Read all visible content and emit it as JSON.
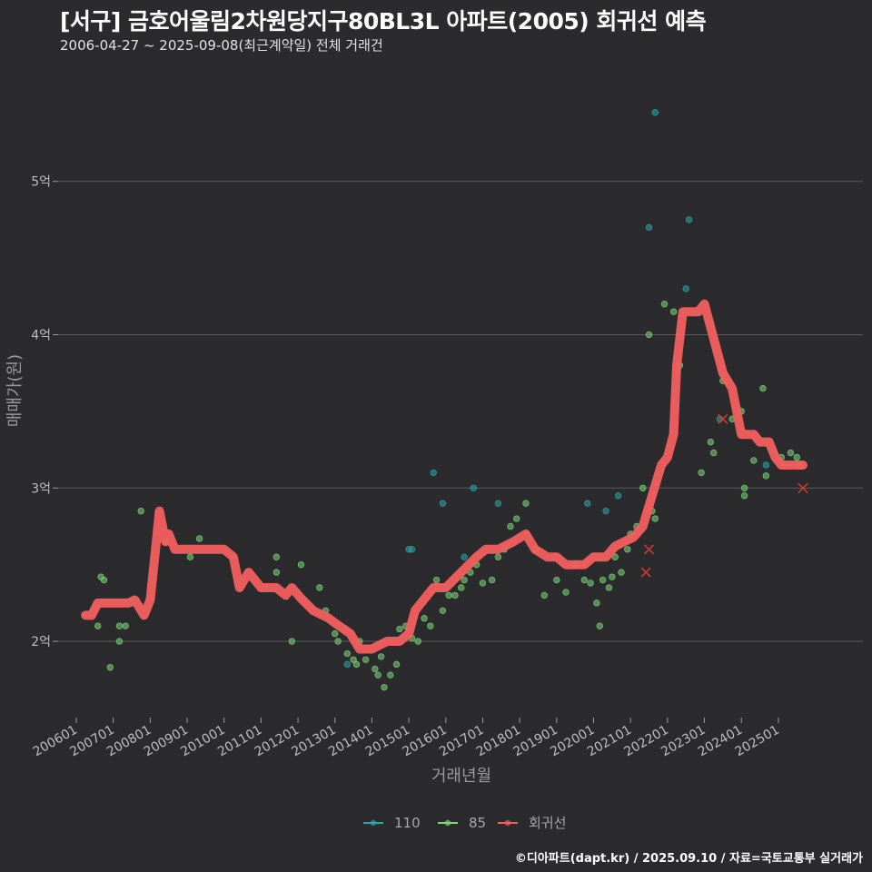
{
  "header": {
    "title": "[서구] 금호어울림2차원당지구80BL3L 아파트(2005) 회귀선 예측",
    "subtitle": "2006-04-27 ~ 2025-09-08(최근계약일) 전체 거래건"
  },
  "footer": {
    "credit": "©디아파트(dapt.kr) / 2025.09.10 / 자료=국토교통부 실거래가"
  },
  "colors": {
    "background": "#2b2b2d",
    "grid": "#5a5a5a",
    "series_110": "#2aa6a8",
    "series_85": "#7ed67a",
    "regression": "#f25f5f"
  },
  "chart_data": {
    "type": "scatter",
    "title": "[서구] 금호어울림2차원당지구80BL3L 아파트(2005) 회귀선 예측",
    "subtitle": "2006-04-27 ~ 2025-09-08(최근계약일) 전체 거래건",
    "xlabel": "거래년월",
    "ylabel": "매매가(원)",
    "x_type": "date",
    "xlim": [
      "2006-01",
      "2025-09"
    ],
    "ylim": [
      1.55,
      5.65
    ],
    "x_ticks": [
      "2006-01",
      "2007-01",
      "2008-01",
      "2009-01",
      "2010-01",
      "2011-01",
      "2012-01",
      "2013-01",
      "2014-01",
      "2015-01",
      "2016-01",
      "2017-01",
      "2018-01",
      "2019-01",
      "2020-01",
      "2021-01",
      "2022-01",
      "2023-01",
      "2024-01",
      "2025-01"
    ],
    "x_tick_labels": [
      "200601",
      "200701",
      "200801",
      "200901",
      "201001",
      "201101",
      "201201",
      "201301",
      "201401",
      "201501",
      "201601",
      "201701",
      "201801",
      "201901",
      "202001",
      "202101",
      "202201",
      "202301",
      "202401",
      "202501"
    ],
    "y_ticks": [
      2,
      3,
      4,
      5
    ],
    "y_tick_labels": [
      "2억",
      "3억",
      "4억",
      "5억"
    ],
    "grid": "horizontal",
    "legend_position": "bottom",
    "series": [
      {
        "name": "110",
        "kind": "points",
        "points": [
          [
            "2013-05",
            1.85
          ],
          [
            "2015-01",
            2.6
          ],
          [
            "2015-02",
            2.6
          ],
          [
            "2015-09",
            3.1
          ],
          [
            "2015-12",
            2.9
          ],
          [
            "2016-07",
            2.55
          ],
          [
            "2016-10",
            3.0
          ],
          [
            "2017-06",
            2.9
          ],
          [
            "2019-11",
            2.9
          ],
          [
            "2020-05",
            2.85
          ],
          [
            "2020-09",
            2.95
          ],
          [
            "2021-07",
            4.7
          ],
          [
            "2021-09",
            5.45
          ],
          [
            "2022-07",
            4.3
          ],
          [
            "2022-08",
            4.75
          ],
          [
            "2023-06",
            3.45
          ],
          [
            "2024-09",
            3.15
          ],
          [
            "2025-03",
            3.15
          ]
        ]
      },
      {
        "name": "85",
        "kind": "points",
        "points": [
          [
            "2006-08",
            2.1
          ],
          [
            "2006-09",
            2.42
          ],
          [
            "2006-10",
            2.4
          ],
          [
            "2006-12",
            1.83
          ],
          [
            "2007-03",
            2.1
          ],
          [
            "2007-03",
            2.0
          ],
          [
            "2007-05",
            2.1
          ],
          [
            "2007-10",
            2.85
          ],
          [
            "2008-06",
            2.65
          ],
          [
            "2009-02",
            2.55
          ],
          [
            "2009-05",
            2.67
          ],
          [
            "2010-04",
            2.55
          ],
          [
            "2011-06",
            2.45
          ],
          [
            "2011-06",
            2.55
          ],
          [
            "2011-11",
            2.0
          ],
          [
            "2012-02",
            2.5
          ],
          [
            "2012-08",
            2.35
          ],
          [
            "2012-10",
            2.2
          ],
          [
            "2013-01",
            2.05
          ],
          [
            "2013-02",
            2.0
          ],
          [
            "2013-05",
            1.92
          ],
          [
            "2013-07",
            1.88
          ],
          [
            "2013-08",
            1.85
          ],
          [
            "2013-09",
            2.0
          ],
          [
            "2013-11",
            1.88
          ],
          [
            "2014-02",
            1.82
          ],
          [
            "2014-03",
            1.78
          ],
          [
            "2014-04",
            1.9
          ],
          [
            "2014-05",
            1.7
          ],
          [
            "2014-07",
            1.78
          ],
          [
            "2014-09",
            1.85
          ],
          [
            "2014-10",
            2.08
          ],
          [
            "2014-12",
            2.1
          ],
          [
            "2015-02",
            2.02
          ],
          [
            "2015-04",
            2.0
          ],
          [
            "2015-06",
            2.15
          ],
          [
            "2015-08",
            2.1
          ],
          [
            "2015-10",
            2.4
          ],
          [
            "2015-12",
            2.2
          ],
          [
            "2016-02",
            2.3
          ],
          [
            "2016-04",
            2.3
          ],
          [
            "2016-06",
            2.35
          ],
          [
            "2016-07",
            2.4
          ],
          [
            "2016-09",
            2.45
          ],
          [
            "2016-11",
            2.5
          ],
          [
            "2017-01",
            2.38
          ],
          [
            "2017-04",
            2.4
          ],
          [
            "2017-06",
            2.55
          ],
          [
            "2017-08",
            2.6
          ],
          [
            "2017-10",
            2.75
          ],
          [
            "2017-12",
            2.8
          ],
          [
            "2018-03",
            2.9
          ],
          [
            "2018-06",
            2.6
          ],
          [
            "2018-09",
            2.3
          ],
          [
            "2019-01",
            2.4
          ],
          [
            "2019-04",
            2.32
          ],
          [
            "2019-07",
            2.5
          ],
          [
            "2019-10",
            2.4
          ],
          [
            "2019-12",
            2.38
          ],
          [
            "2020-02",
            2.25
          ],
          [
            "2020-03",
            2.1
          ],
          [
            "2020-04",
            2.4
          ],
          [
            "2020-06",
            2.35
          ],
          [
            "2020-07",
            2.42
          ],
          [
            "2020-08",
            2.55
          ],
          [
            "2020-10",
            2.45
          ],
          [
            "2020-12",
            2.6
          ],
          [
            "2021-01",
            2.7
          ],
          [
            "2021-03",
            2.75
          ],
          [
            "2021-05",
            3.0
          ],
          [
            "2021-07",
            4.0
          ],
          [
            "2021-08",
            2.85
          ],
          [
            "2021-09",
            2.8
          ],
          [
            "2021-12",
            4.2
          ],
          [
            "2022-03",
            4.15
          ],
          [
            "2022-05",
            3.8
          ],
          [
            "2022-12",
            3.1
          ],
          [
            "2023-03",
            3.3
          ],
          [
            "2023-04",
            3.23
          ],
          [
            "2023-07",
            3.7
          ],
          [
            "2023-10",
            3.45
          ],
          [
            "2024-01",
            3.5
          ],
          [
            "2024-02",
            3.0
          ],
          [
            "2024-02",
            2.95
          ],
          [
            "2024-05",
            3.18
          ],
          [
            "2024-08",
            3.65
          ],
          [
            "2024-09",
            3.08
          ],
          [
            "2025-02",
            3.2
          ],
          [
            "2025-05",
            3.23
          ],
          [
            "2025-07",
            3.2
          ],
          [
            "2025-08",
            3.15
          ]
        ]
      },
      {
        "name": "회귀선",
        "kind": "line",
        "points": [
          [
            "2006-04",
            2.17
          ],
          [
            "2006-06",
            2.17
          ],
          [
            "2006-08",
            2.25
          ],
          [
            "2007-01",
            2.25
          ],
          [
            "2007-06",
            2.25
          ],
          [
            "2007-08",
            2.27
          ],
          [
            "2007-11",
            2.17
          ],
          [
            "2008-01",
            2.27
          ],
          [
            "2008-03",
            2.65
          ],
          [
            "2008-04",
            2.85
          ],
          [
            "2008-06",
            2.65
          ],
          [
            "2008-07",
            2.7
          ],
          [
            "2008-09",
            2.6
          ],
          [
            "2009-03",
            2.6
          ],
          [
            "2009-09",
            2.6
          ],
          [
            "2010-01",
            2.6
          ],
          [
            "2010-04",
            2.55
          ],
          [
            "2010-06",
            2.35
          ],
          [
            "2010-09",
            2.45
          ],
          [
            "2011-01",
            2.35
          ],
          [
            "2011-06",
            2.35
          ],
          [
            "2011-09",
            2.3
          ],
          [
            "2011-11",
            2.35
          ],
          [
            "2012-02",
            2.28
          ],
          [
            "2012-06",
            2.2
          ],
          [
            "2012-11",
            2.15
          ],
          [
            "2013-01",
            2.12
          ],
          [
            "2013-06",
            2.05
          ],
          [
            "2013-09",
            1.95
          ],
          [
            "2014-01",
            1.95
          ],
          [
            "2014-06",
            2.0
          ],
          [
            "2014-10",
            2.0
          ],
          [
            "2015-01",
            2.05
          ],
          [
            "2015-03",
            2.2
          ],
          [
            "2015-07",
            2.3
          ],
          [
            "2015-09",
            2.35
          ],
          [
            "2016-01",
            2.35
          ],
          [
            "2016-06",
            2.45
          ],
          [
            "2016-11",
            2.55
          ],
          [
            "2017-02",
            2.6
          ],
          [
            "2017-06",
            2.6
          ],
          [
            "2017-11",
            2.65
          ],
          [
            "2018-03",
            2.7
          ],
          [
            "2018-06",
            2.6
          ],
          [
            "2018-10",
            2.55
          ],
          [
            "2019-01",
            2.55
          ],
          [
            "2019-04",
            2.5
          ],
          [
            "2019-07",
            2.5
          ],
          [
            "2019-10",
            2.5
          ],
          [
            "2020-01",
            2.55
          ],
          [
            "2020-05",
            2.55
          ],
          [
            "2020-08",
            2.62
          ],
          [
            "2020-11",
            2.65
          ],
          [
            "2021-02",
            2.68
          ],
          [
            "2021-05",
            2.75
          ],
          [
            "2021-08",
            2.95
          ],
          [
            "2021-11",
            3.15
          ],
          [
            "2022-01",
            3.2
          ],
          [
            "2022-03",
            3.35
          ],
          [
            "2022-04",
            3.8
          ],
          [
            "2022-06",
            4.15
          ],
          [
            "2022-08",
            4.15
          ],
          [
            "2022-11",
            4.15
          ],
          [
            "2023-01",
            4.2
          ],
          [
            "2023-03",
            4.05
          ],
          [
            "2023-05",
            3.9
          ],
          [
            "2023-07",
            3.75
          ],
          [
            "2023-10",
            3.65
          ],
          [
            "2023-12",
            3.45
          ],
          [
            "2024-01",
            3.35
          ],
          [
            "2024-03",
            3.35
          ],
          [
            "2024-05",
            3.35
          ],
          [
            "2024-07",
            3.3
          ],
          [
            "2024-10",
            3.3
          ],
          [
            "2024-12",
            3.2
          ],
          [
            "2025-02",
            3.15
          ],
          [
            "2025-05",
            3.15
          ],
          [
            "2025-07",
            3.15
          ],
          [
            "2025-09",
            3.15
          ]
        ]
      }
    ],
    "annotations": [
      {
        "type": "x-marker",
        "x": "2021-06",
        "y": 2.45
      },
      {
        "type": "x-marker",
        "x": "2021-07",
        "y": 2.6
      },
      {
        "type": "x-marker",
        "x": "2023-07",
        "y": 3.45
      },
      {
        "type": "x-marker",
        "x": "2025-09",
        "y": 3.0
      }
    ]
  }
}
